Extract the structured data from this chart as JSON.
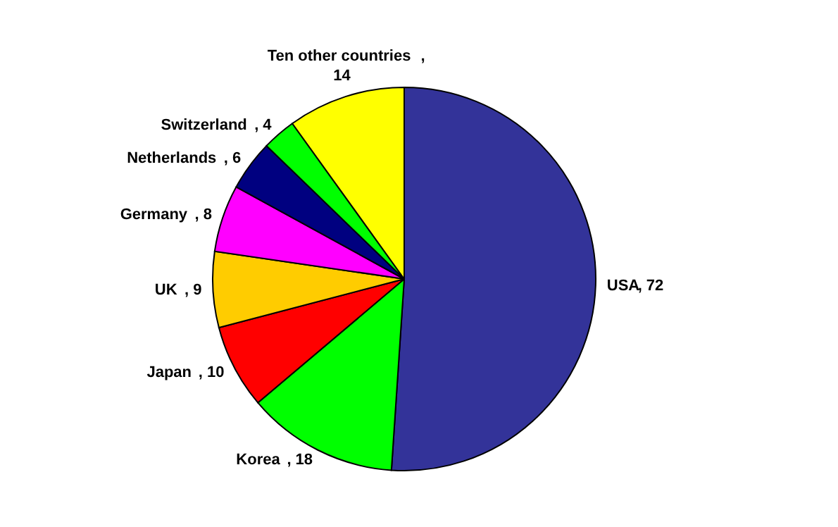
{
  "chart_data": {
    "type": "pie",
    "categories": [
      "USA",
      "Korea",
      "Japan",
      "UK",
      "Germany",
      "Netherlands",
      "Switzerland",
      "Ten other countries"
    ],
    "values": [
      72,
      18,
      10,
      9,
      8,
      6,
      4,
      14
    ],
    "value_labels": [
      ", 72",
      ", 18",
      ", 10",
      ", 9",
      ", 8",
      ", 6",
      ", 4",
      ", 14"
    ],
    "colors": [
      "#333399",
      "#00ff00",
      "#ff0000",
      "#ffcc00",
      "#ff00ff",
      "#000080",
      "#00ff00",
      "#ffff00"
    ]
  }
}
